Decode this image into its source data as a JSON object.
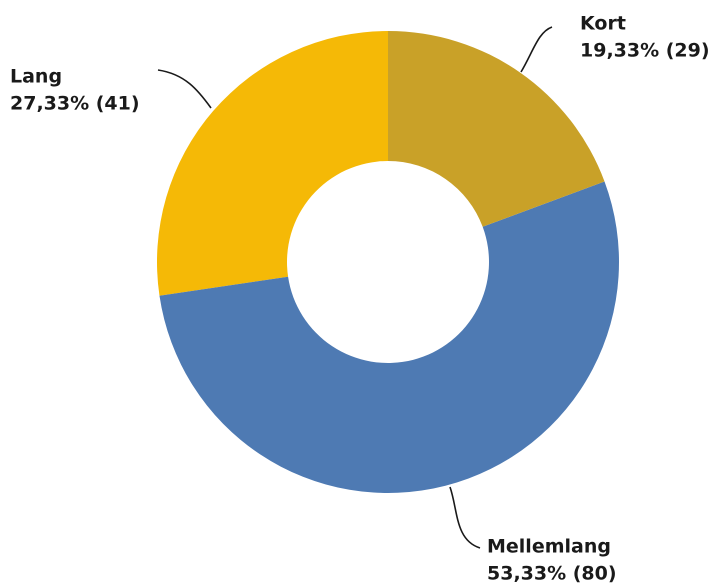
{
  "chart_data": {
    "type": "donut",
    "categories": [
      "Kort",
      "Mellemlang",
      "Lang"
    ],
    "values": [
      29,
      80,
      41
    ],
    "value_labels": [
      "19,33% (29)",
      "53,33% (80)",
      "27,33% (41)"
    ],
    "colors": [
      "#c9a128",
      "#4e7ab3",
      "#f5b906"
    ]
  }
}
